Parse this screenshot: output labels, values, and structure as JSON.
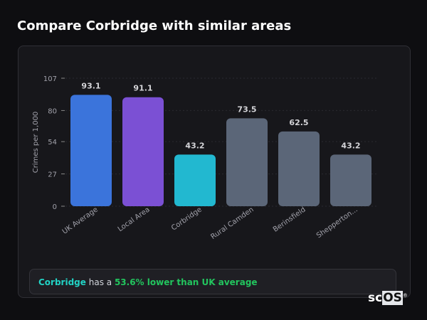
{
  "title": "Compare Corbridge with similar areas",
  "chart_data": {
    "type": "bar",
    "ylabel": "Crimes per 1,000",
    "ylim": [
      0,
      107
    ],
    "yticks": [
      0,
      27,
      54,
      80,
      107
    ],
    "grid": true,
    "categories": [
      "UK Average",
      "Local Area",
      "Corbridge",
      "Rural Camden",
      "Berinsfield",
      "Shepperton..."
    ],
    "values": [
      93.1,
      91.1,
      43.2,
      73.5,
      62.5,
      43.2
    ],
    "data_labels": [
      "93.1",
      "91.1",
      "43.2",
      "73.5",
      "62.5",
      "43.2"
    ],
    "colors": [
      "#3b74db",
      "#7b50d4",
      "#22b8d0",
      "#5b6678",
      "#5b6678",
      "#5b6678"
    ]
  },
  "summary": {
    "area": "Corbridge",
    "middle": " has a ",
    "comparison": "53.6% lower than UK average"
  },
  "logo": {
    "text_a": "sc",
    "text_b": "OS",
    "mark": "®"
  }
}
